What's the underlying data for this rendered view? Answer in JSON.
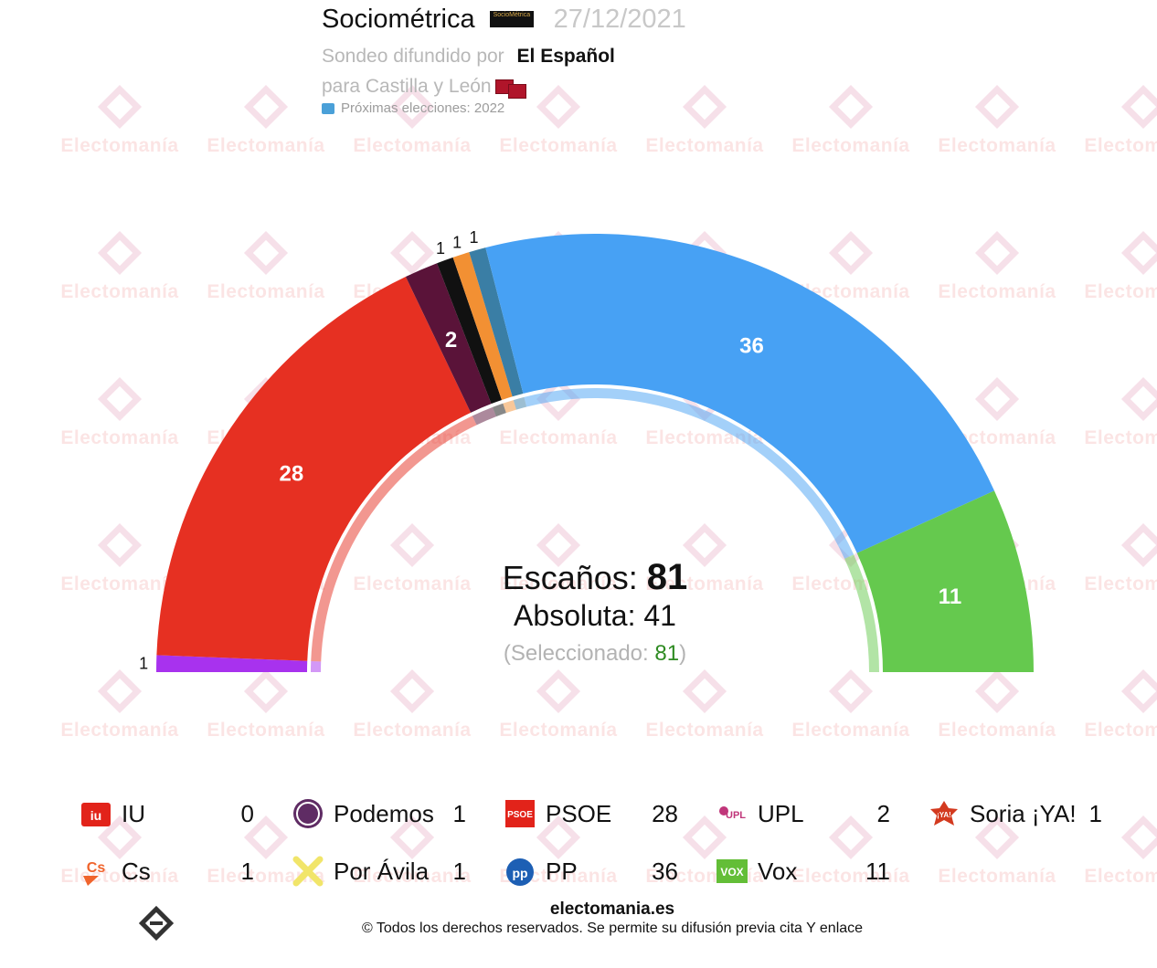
{
  "header": {
    "pollster": "Sociométrica",
    "pollster_logo_text": "SocioMétrica",
    "date": "27/12/2021",
    "intro": "Sondeo difundido por",
    "media": "El Español",
    "region": "para Castilla y León",
    "next_elections": "Próximas elecciones: 2022"
  },
  "watermark_text": "Electomanía",
  "summary": {
    "seats_label": "Escaños:",
    "seats_total": "81",
    "majority": "Absoluta: 41",
    "selected_open": "(Seleccionado:",
    "selected_value": "81",
    "selected_close": ")"
  },
  "chart_data": {
    "type": "pie",
    "subtype": "half-donut parliament",
    "total_seats": 81,
    "majority": 41,
    "series": [
      {
        "name": "Por Ávila",
        "value": 1,
        "color": "#a832ee"
      },
      {
        "name": "PSOE",
        "value": 28,
        "color": "#e63022"
      },
      {
        "name": "UPL",
        "value": 2,
        "color": "#5a1339"
      },
      {
        "name": "Podemos",
        "value": 1,
        "color": "#111111"
      },
      {
        "name": "Cs",
        "value": 1,
        "color": "#f29033"
      },
      {
        "name": "Soria ¡YA!",
        "value": 1,
        "color": "#3a7ea5"
      },
      {
        "name": "PP",
        "value": 36,
        "color": "#47a1f4"
      },
      {
        "name": "Vox",
        "value": 11,
        "color": "#65c94e"
      }
    ]
  },
  "legend": [
    {
      "name": "IU",
      "value": "0",
      "icon": "iu-icon",
      "color": "#e2231a"
    },
    {
      "name": "Podemos",
      "value": "1",
      "icon": "podemos-icon",
      "color": "#5f2c64"
    },
    {
      "name": "PSOE",
      "value": "28",
      "icon": "psoe-icon",
      "color": "#e2231a"
    },
    {
      "name": "UPL",
      "value": "2",
      "icon": "upl-icon",
      "color": "#c0367a"
    },
    {
      "name": "Soria ¡YA!",
      "value": "1",
      "icon": "soria-ya-icon",
      "color": "#d33a1f"
    },
    {
      "name": "Cs",
      "value": "1",
      "icon": "cs-icon",
      "color": "#f0642c"
    },
    {
      "name": "Por Ávila",
      "value": "1",
      "icon": "por-avila-icon",
      "color": "#f1e56a"
    },
    {
      "name": "PP",
      "value": "36",
      "icon": "pp-icon",
      "color": "#1d5fb4"
    },
    {
      "name": "Vox",
      "value": "11",
      "icon": "vox-icon",
      "color": "#63be37"
    }
  ],
  "footer": {
    "site": "electomania.es",
    "copyright": "© Todos los derechos reservados. Se permite su difusión previa cita Y enlace"
  }
}
